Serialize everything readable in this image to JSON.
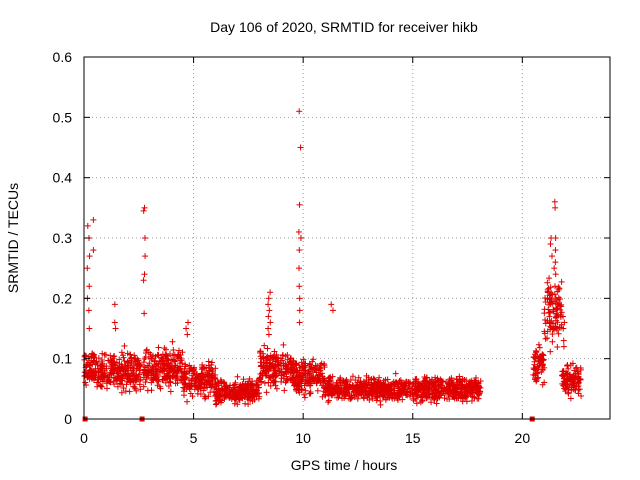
{
  "chart_data": {
    "type": "scatter",
    "title": "Day 106 of 2020, SRMTID for receiver hikb",
    "xlabel": "GPS time / hours",
    "ylabel": "SRMTID / TECUs",
    "xlim": [
      0,
      24
    ],
    "ylim": [
      0,
      0.6
    ],
    "grid": true,
    "marker": "+",
    "marker_color": "#e00000",
    "x_ticks": [
      0,
      5,
      10,
      15,
      20
    ],
    "x_tick_labels": [
      "0",
      "5",
      "10",
      "15",
      "20"
    ],
    "y_ticks": [
      0,
      0.1,
      0.2,
      0.3,
      0.4,
      0.5,
      0.6
    ],
    "y_tick_labels": [
      "0",
      "0.1",
      "0.2",
      "0.3",
      "0.4",
      "0.5",
      "0.6"
    ],
    "data_gap_markers_x": [
      0.05,
      2.65,
      20.45
    ],
    "segments": [
      {
        "x_start": 0.0,
        "x_end": 0.6,
        "baseline": 0.085,
        "spread": 0.03
      },
      {
        "x_start": 0.6,
        "x_end": 2.6,
        "baseline": 0.08,
        "spread": 0.035
      },
      {
        "x_start": 2.7,
        "x_end": 4.5,
        "baseline": 0.085,
        "spread": 0.035
      },
      {
        "x_start": 4.5,
        "x_end": 6.0,
        "baseline": 0.065,
        "spread": 0.03
      },
      {
        "x_start": 6.0,
        "x_end": 8.0,
        "baseline": 0.045,
        "spread": 0.02
      },
      {
        "x_start": 8.0,
        "x_end": 9.5,
        "baseline": 0.085,
        "spread": 0.035
      },
      {
        "x_start": 9.5,
        "x_end": 11.0,
        "baseline": 0.07,
        "spread": 0.03
      },
      {
        "x_start": 11.0,
        "x_end": 18.1,
        "baseline": 0.05,
        "spread": 0.02
      },
      {
        "x_start": 20.5,
        "x_end": 21.0,
        "baseline": 0.09,
        "spread": 0.035
      },
      {
        "x_start": 21.0,
        "x_end": 21.8,
        "baseline": 0.18,
        "spread": 0.06
      },
      {
        "x_start": 21.8,
        "x_end": 22.7,
        "baseline": 0.065,
        "spread": 0.025
      }
    ],
    "spikes": [
      {
        "x": 0.2,
        "y": [
          0.32,
          0.3,
          0.27,
          0.25,
          0.22,
          0.2,
          0.18,
          0.15
        ]
      },
      {
        "x": 0.45,
        "y": [
          0.33,
          0.28
        ]
      },
      {
        "x": 1.4,
        "y": [
          0.19,
          0.16,
          0.15
        ]
      },
      {
        "x": 2.75,
        "y": [
          0.35,
          0.345,
          0.3,
          0.27,
          0.24,
          0.23,
          0.175
        ]
      },
      {
        "x": 4.7,
        "y": [
          0.16,
          0.15,
          0.14
        ]
      },
      {
        "x": 8.45,
        "y": [
          0.21,
          0.2,
          0.19,
          0.18,
          0.17,
          0.16,
          0.15,
          0.14
        ]
      },
      {
        "x": 9.85,
        "y": [
          0.51,
          0.45,
          0.355,
          0.31,
          0.3,
          0.28,
          0.25,
          0.22,
          0.2,
          0.18,
          0.16
        ]
      },
      {
        "x": 11.3,
        "y": [
          0.19,
          0.18
        ]
      },
      {
        "x": 21.5,
        "y": [
          0.36,
          0.35,
          0.3,
          0.28,
          0.26,
          0.25,
          0.24,
          0.22
        ]
      },
      {
        "x": 21.3,
        "y": [
          0.3,
          0.29,
          0.27
        ]
      },
      {
        "x": 21.9,
        "y": [
          0.17,
          0.16,
          0.15,
          0.13,
          0.12
        ]
      }
    ]
  }
}
